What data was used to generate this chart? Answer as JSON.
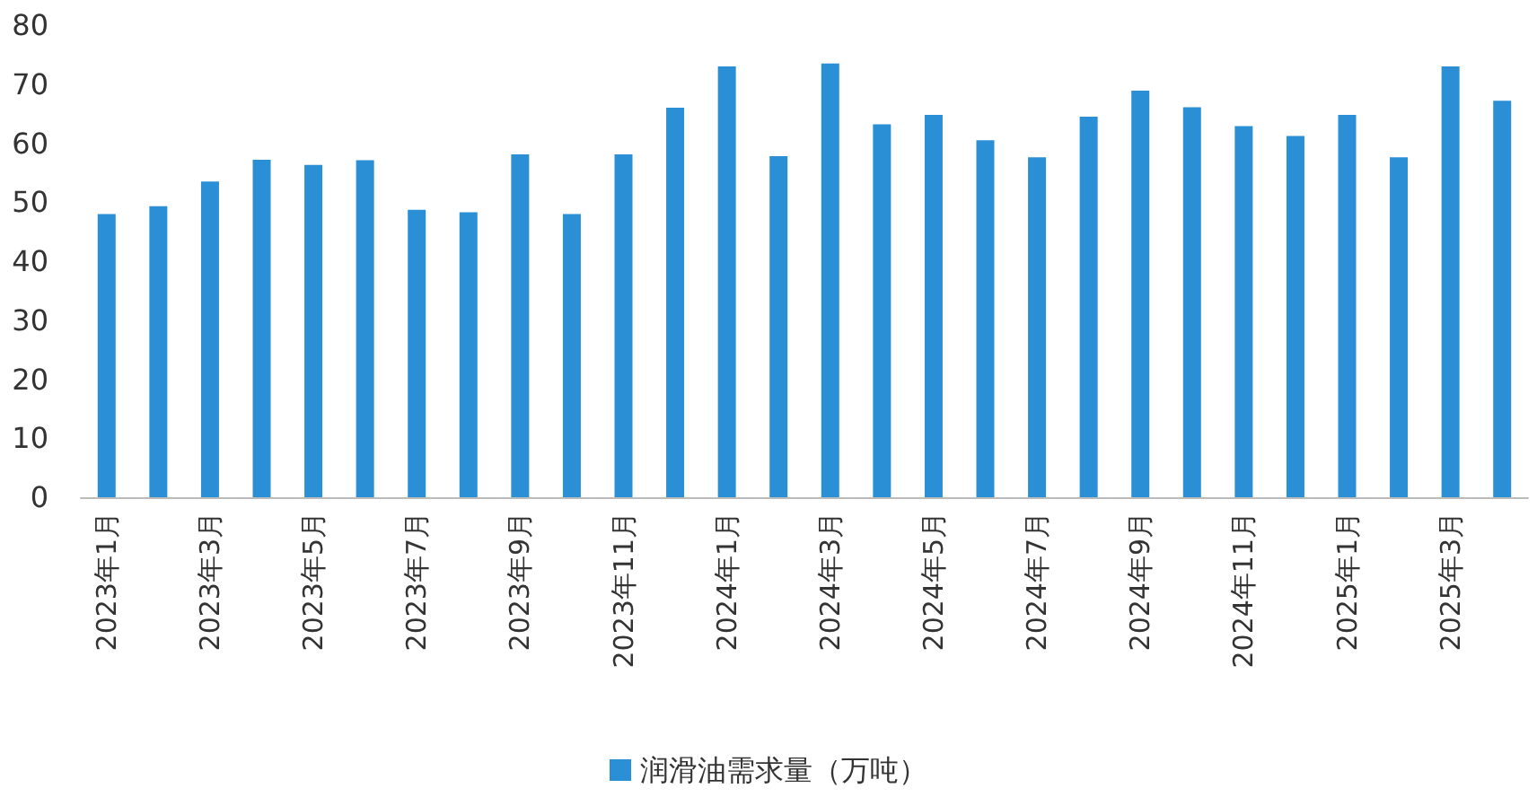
{
  "chart_data": {
    "type": "bar",
    "categories": [
      "2023年1月",
      null,
      "2023年3月",
      null,
      "2023年5月",
      null,
      "2023年7月",
      null,
      "2023年9月",
      null,
      "2023年11月",
      null,
      "2024年1月",
      null,
      "2024年3月",
      null,
      "2024年5月",
      null,
      "2024年7月",
      null,
      "2024年9月",
      null,
      "2024年11月",
      null,
      "2025年1月",
      null,
      "2025年3月",
      null
    ],
    "series": [
      {
        "name": "润滑油需求量（万吨）",
        "color": "#2b8fd6",
        "values": [
          48.0,
          49.3,
          53.5,
          57.2,
          56.3,
          57.1,
          48.7,
          48.3,
          58.1,
          48.0,
          58.1,
          66.0,
          73.0,
          57.8,
          73.5,
          63.2,
          64.8,
          60.5,
          57.6,
          64.5,
          68.9,
          66.1,
          62.9,
          61.2,
          64.8,
          57.6,
          73.0,
          67.2
        ]
      }
    ],
    "ylim": [
      0,
      80
    ],
    "yticks": [
      0,
      10,
      20,
      30,
      40,
      50,
      60,
      70,
      80
    ],
    "grid": false,
    "legend": "bottom"
  }
}
